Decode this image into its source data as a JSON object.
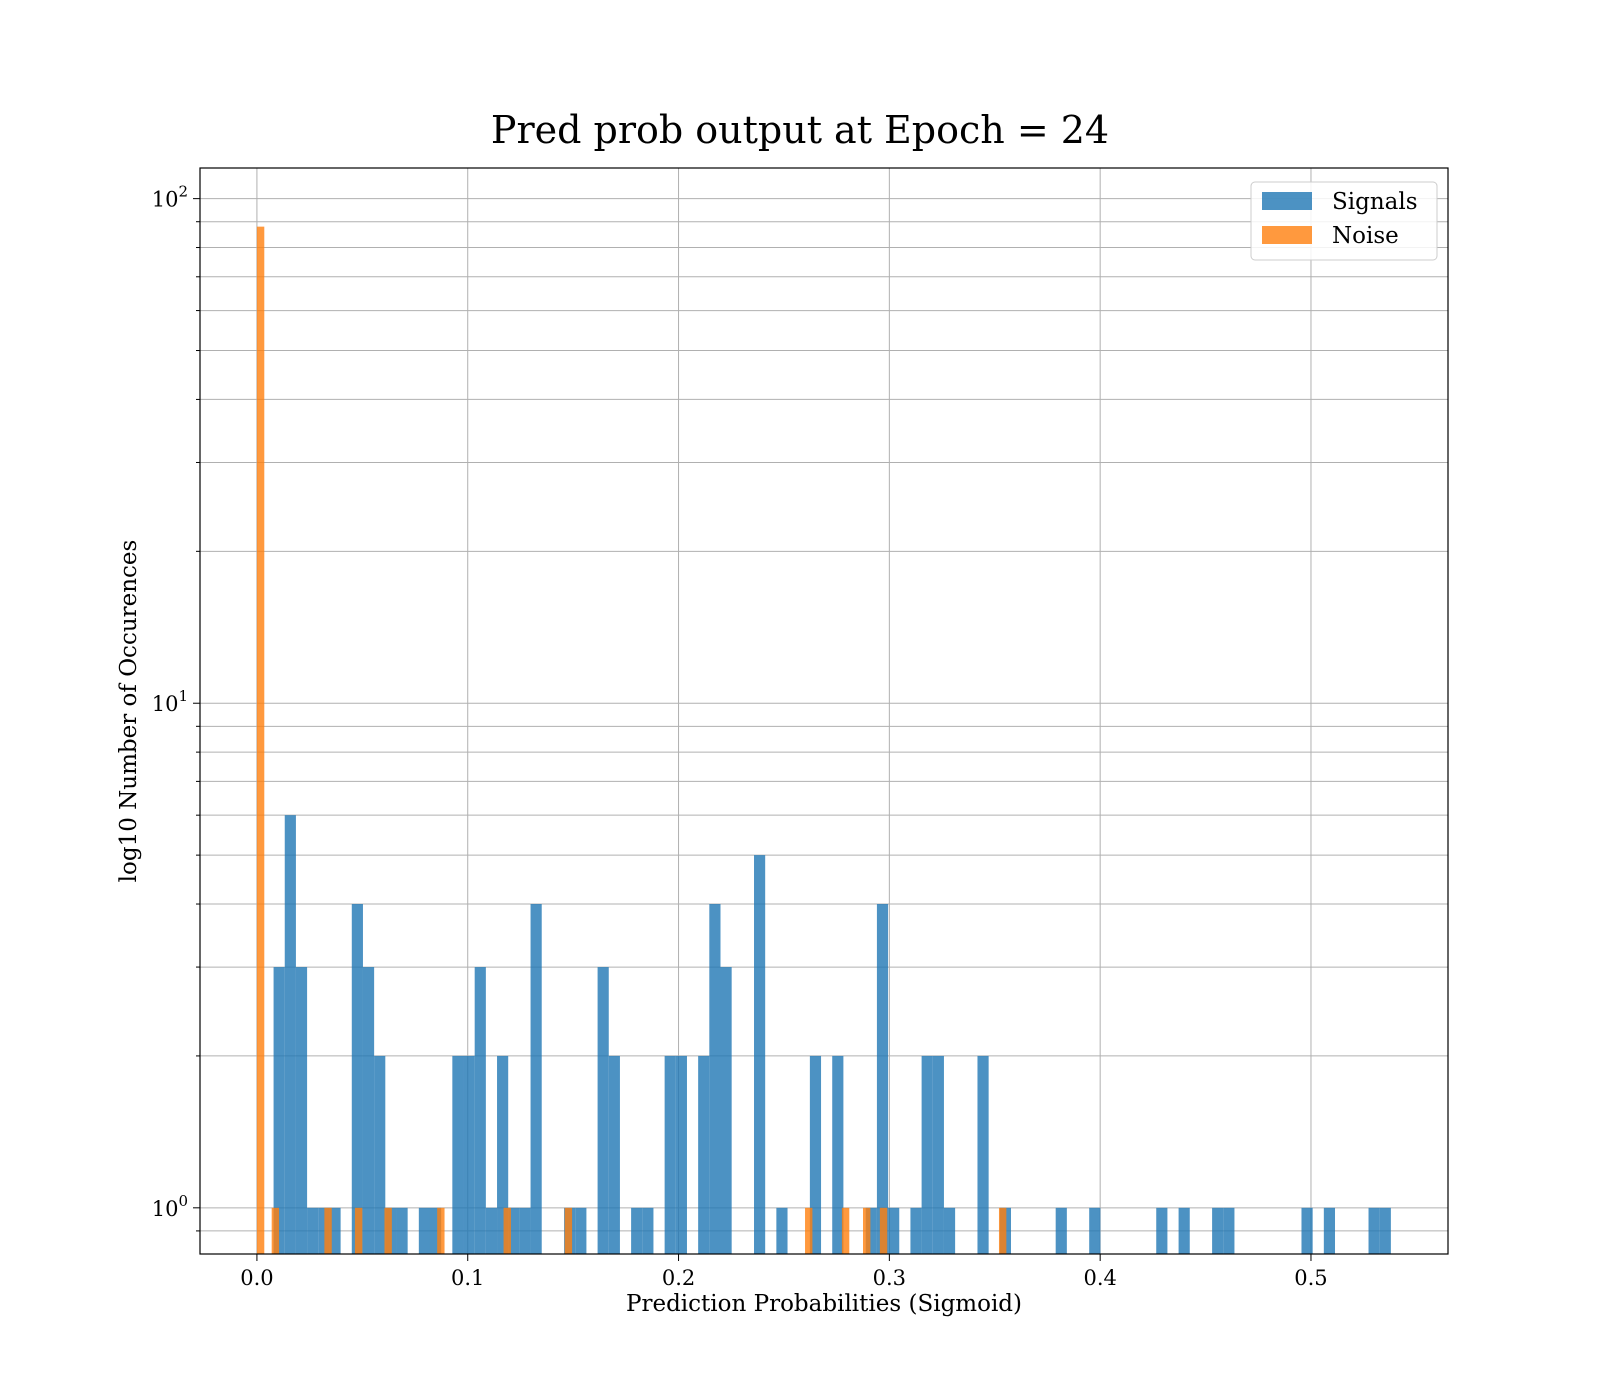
{
  "chart_data": {
    "type": "bar",
    "title": "Pred prob output at Epoch = 24",
    "xlabel": "Prediction Probabilities (Sigmoid)",
    "ylabel": "log10 Number of Occurences",
    "xlim": [
      -0.027,
      0.565
    ],
    "ylim": [
      0.81,
      115
    ],
    "yscale": "log",
    "grid": true,
    "bin_width": 0.0053,
    "x_ticks": [
      0.0,
      0.1,
      0.2,
      0.3,
      0.4,
      0.5
    ],
    "x_tick_labels": [
      "0.0",
      "0.1",
      "0.2",
      "0.3",
      "0.4",
      "0.5"
    ],
    "y_ticks": [
      {
        "value": 1,
        "base": "10",
        "exp": "0"
      },
      {
        "value": 10,
        "base": "10",
        "exp": "1"
      },
      {
        "value": 100,
        "base": "10",
        "exp": "2"
      }
    ],
    "legend": {
      "placement": "upper right",
      "entries": [
        {
          "label": "Signals",
          "color": "#1f77b4"
        },
        {
          "label": "Noise",
          "color": "#ff7f0e"
        }
      ]
    },
    "series": [
      {
        "name": "Signals",
        "color": "#1f77b4",
        "opacity": 0.8,
        "bars": [
          {
            "x": 0.0079,
            "count": 3
          },
          {
            "x": 0.0132,
            "count": 6
          },
          {
            "x": 0.0185,
            "count": 3
          },
          {
            "x": 0.0238,
            "count": 1
          },
          {
            "x": 0.0291,
            "count": 1
          },
          {
            "x": 0.0344,
            "count": 1
          },
          {
            "x": 0.045,
            "count": 4
          },
          {
            "x": 0.0503,
            "count": 3
          },
          {
            "x": 0.0556,
            "count": 2
          },
          {
            "x": 0.0609,
            "count": 1
          },
          {
            "x": 0.0662,
            "count": 1
          },
          {
            "x": 0.0768,
            "count": 1
          },
          {
            "x": 0.0821,
            "count": 1
          },
          {
            "x": 0.0927,
            "count": 2
          },
          {
            "x": 0.098,
            "count": 2
          },
          {
            "x": 0.1033,
            "count": 3
          },
          {
            "x": 0.1086,
            "count": 1
          },
          {
            "x": 0.1139,
            "count": 2
          },
          {
            "x": 0.1192,
            "count": 1
          },
          {
            "x": 0.1245,
            "count": 1
          },
          {
            "x": 0.1298,
            "count": 4
          },
          {
            "x": 0.1457,
            "count": 1
          },
          {
            "x": 0.151,
            "count": 1
          },
          {
            "x": 0.1616,
            "count": 3
          },
          {
            "x": 0.1669,
            "count": 2
          },
          {
            "x": 0.1775,
            "count": 1
          },
          {
            "x": 0.1828,
            "count": 1
          },
          {
            "x": 0.1934,
            "count": 2
          },
          {
            "x": 0.1987,
            "count": 2
          },
          {
            "x": 0.2093,
            "count": 2
          },
          {
            "x": 0.2146,
            "count": 4
          },
          {
            "x": 0.2199,
            "count": 3
          },
          {
            "x": 0.2358,
            "count": 5
          },
          {
            "x": 0.2464,
            "count": 1
          },
          {
            "x": 0.2623,
            "count": 2
          },
          {
            "x": 0.2729,
            "count": 2
          },
          {
            "x": 0.2888,
            "count": 1
          },
          {
            "x": 0.2941,
            "count": 4
          },
          {
            "x": 0.2994,
            "count": 1
          },
          {
            "x": 0.31,
            "count": 1
          },
          {
            "x": 0.3153,
            "count": 2
          },
          {
            "x": 0.3206,
            "count": 2
          },
          {
            "x": 0.3259,
            "count": 1
          },
          {
            "x": 0.3418,
            "count": 2
          },
          {
            "x": 0.3524,
            "count": 1
          },
          {
            "x": 0.3789,
            "count": 1
          },
          {
            "x": 0.3948,
            "count": 1
          },
          {
            "x": 0.4266,
            "count": 1
          },
          {
            "x": 0.4372,
            "count": 1
          },
          {
            "x": 0.4531,
            "count": 1
          },
          {
            "x": 0.4584,
            "count": 1
          },
          {
            "x": 0.4955,
            "count": 1
          },
          {
            "x": 0.5061,
            "count": 1
          },
          {
            "x": 0.5273,
            "count": 1
          },
          {
            "x": 0.5326,
            "count": 1
          }
        ]
      },
      {
        "name": "Noise",
        "color": "#ff7f0e",
        "opacity": 0.8,
        "bars": [
          {
            "x": 0.0,
            "count": 88,
            "width": 0.0035
          },
          {
            "x": 0.007,
            "count": 1,
            "width": 0.0035
          },
          {
            "x": 0.032,
            "count": 1,
            "width": 0.0035
          },
          {
            "x": 0.0465,
            "count": 1,
            "width": 0.0035
          },
          {
            "x": 0.0605,
            "count": 1,
            "width": 0.0035
          },
          {
            "x": 0.0855,
            "count": 1,
            "width": 0.0035
          },
          {
            "x": 0.117,
            "count": 1,
            "width": 0.0035
          },
          {
            "x": 0.146,
            "count": 1,
            "width": 0.0035
          },
          {
            "x": 0.26,
            "count": 1,
            "width": 0.0035
          },
          {
            "x": 0.2775,
            "count": 1,
            "width": 0.0035
          },
          {
            "x": 0.2875,
            "count": 1,
            "width": 0.0035
          },
          {
            "x": 0.2955,
            "count": 1,
            "width": 0.0035
          },
          {
            "x": 0.352,
            "count": 1,
            "width": 0.0035
          }
        ]
      }
    ]
  }
}
